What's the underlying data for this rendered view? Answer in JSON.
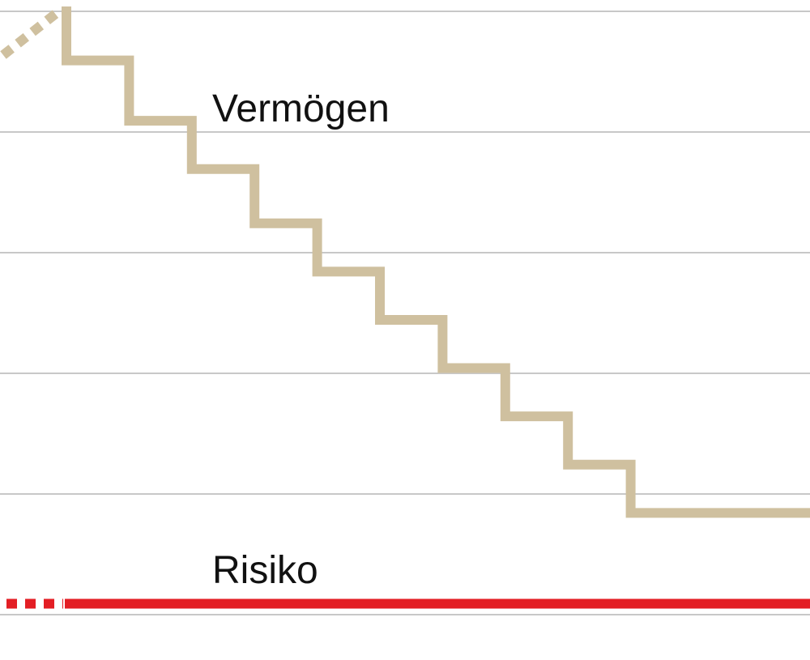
{
  "chart_data": {
    "type": "line",
    "title": "",
    "xlabel": "",
    "ylabel": "",
    "grid": true,
    "y_gridlines": [
      0,
      1,
      2,
      3,
      4,
      5
    ],
    "series": [
      {
        "name": "Vermögen",
        "color": "#cfc09f",
        "style": "step",
        "dashed_lead_in": true,
        "x": [
          0,
          1,
          2,
          3,
          4,
          5,
          6,
          7,
          8,
          9,
          10
        ],
        "values": [
          4.6,
          4.1,
          3.7,
          3.25,
          2.85,
          2.45,
          2.05,
          1.65,
          1.25,
          0.85,
          0.85
        ]
      },
      {
        "name": "Risiko",
        "color": "#e31e24",
        "style": "flat",
        "dashed_lead_in": true,
        "x": [
          0,
          10
        ],
        "values": [
          0.05,
          0.05
        ]
      }
    ]
  }
}
